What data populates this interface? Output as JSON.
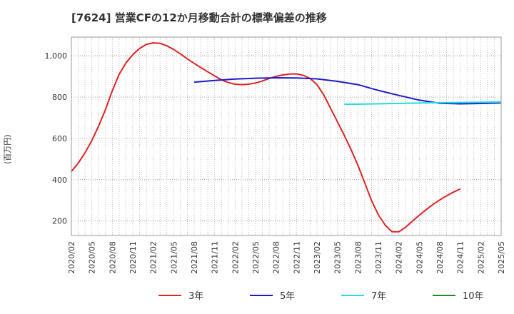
{
  "chart_data": {
    "type": "line",
    "title": "[7624]  営業CFの12か月移動合計の標準偏差の推移",
    "ylabel": "(百万円)",
    "xlabel": "",
    "ylim": [
      130,
      1090
    ],
    "yticks": [
      200,
      400,
      600,
      800,
      "1,000"
    ],
    "ytick_values": [
      200,
      400,
      600,
      800,
      1000
    ],
    "x_tick_labels": [
      "2020/02",
      "2020/05",
      "2020/08",
      "2020/11",
      "2021/02",
      "2021/05",
      "2021/08",
      "2021/11",
      "2022/02",
      "2022/05",
      "2022/08",
      "2022/11",
      "2023/02",
      "2023/05",
      "2023/08",
      "2023/11",
      "2024/02",
      "2024/05",
      "2024/08",
      "2024/11",
      "2025/02",
      "2025/05"
    ],
    "grid": true,
    "legend_position": "bottom",
    "series": [
      {
        "name": "3年",
        "color": "#dd2222",
        "points": [
          [
            "2020/02",
            440
          ],
          [
            "2020/03",
            480
          ],
          [
            "2020/04",
            530
          ],
          [
            "2020/05",
            590
          ],
          [
            "2020/06",
            660
          ],
          [
            "2020/07",
            740
          ],
          [
            "2020/08",
            830
          ],
          [
            "2020/09",
            910
          ],
          [
            "2020/10",
            965
          ],
          [
            "2020/11",
            1005
          ],
          [
            "2020/12",
            1035
          ],
          [
            "2021/01",
            1055
          ],
          [
            "2021/02",
            1062
          ],
          [
            "2021/03",
            1060
          ],
          [
            "2021/04",
            1048
          ],
          [
            "2021/05",
            1030
          ],
          [
            "2021/06",
            1008
          ],
          [
            "2021/07",
            985
          ],
          [
            "2021/08",
            963
          ],
          [
            "2021/09",
            942
          ],
          [
            "2021/10",
            922
          ],
          [
            "2021/11",
            902
          ],
          [
            "2021/12",
            883
          ],
          [
            "2022/01",
            870
          ],
          [
            "2022/02",
            862
          ],
          [
            "2022/03",
            860
          ],
          [
            "2022/04",
            862
          ],
          [
            "2022/05",
            868
          ],
          [
            "2022/06",
            878
          ],
          [
            "2022/07",
            890
          ],
          [
            "2022/08",
            900
          ],
          [
            "2022/09",
            907
          ],
          [
            "2022/10",
            911
          ],
          [
            "2022/11",
            912
          ],
          [
            "2022/12",
            905
          ],
          [
            "2023/01",
            890
          ],
          [
            "2023/02",
            860
          ],
          [
            "2023/03",
            810
          ],
          [
            "2023/04",
            745
          ],
          [
            "2023/05",
            680
          ],
          [
            "2023/06",
            615
          ],
          [
            "2023/07",
            545
          ],
          [
            "2023/08",
            470
          ],
          [
            "2023/09",
            385
          ],
          [
            "2023/10",
            300
          ],
          [
            "2023/11",
            230
          ],
          [
            "2023/12",
            180
          ],
          [
            "2024/01",
            148
          ],
          [
            "2024/02",
            148
          ],
          [
            "2024/03",
            170
          ],
          [
            "2024/04",
            200
          ],
          [
            "2024/05",
            228
          ],
          [
            "2024/06",
            255
          ],
          [
            "2024/07",
            280
          ],
          [
            "2024/08",
            302
          ],
          [
            "2024/09",
            322
          ],
          [
            "2024/10",
            340
          ],
          [
            "2024/11",
            355
          ]
        ]
      },
      {
        "name": "5年",
        "color": "#1a1acc",
        "points": [
          [
            "2021/08",
            872
          ],
          [
            "2021/11",
            880
          ],
          [
            "2022/02",
            887
          ],
          [
            "2022/05",
            891
          ],
          [
            "2022/08",
            893
          ],
          [
            "2022/11",
            892
          ],
          [
            "2023/02",
            888
          ],
          [
            "2023/05",
            876
          ],
          [
            "2023/08",
            860
          ],
          [
            "2023/11",
            832
          ],
          [
            "2024/02",
            808
          ],
          [
            "2024/05",
            785
          ],
          [
            "2024/08",
            770
          ],
          [
            "2024/11",
            767
          ],
          [
            "2025/02",
            769
          ],
          [
            "2025/05",
            772
          ]
        ]
      },
      {
        "name": "7年",
        "color": "#22dddd",
        "points": [
          [
            "2023/06",
            765
          ],
          [
            "2023/09",
            766
          ],
          [
            "2023/12",
            768
          ],
          [
            "2024/03",
            770
          ],
          [
            "2024/06",
            772
          ],
          [
            "2024/09",
            773
          ],
          [
            "2024/12",
            774
          ],
          [
            "2025/05",
            776
          ]
        ]
      },
      {
        "name": "10年",
        "color": "#228822",
        "points": []
      }
    ]
  }
}
